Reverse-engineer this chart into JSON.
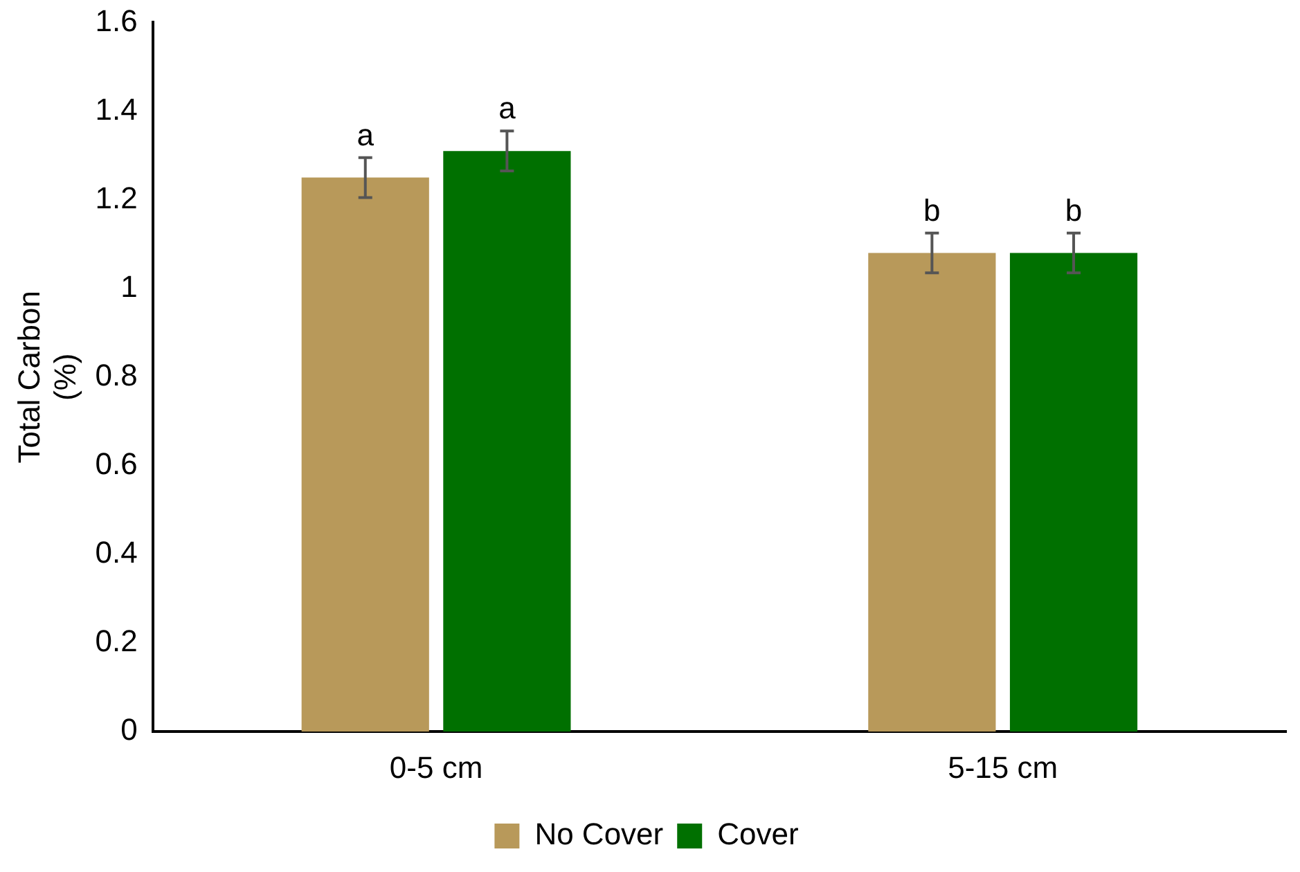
{
  "chart_data": {
    "type": "bar",
    "ylabel": "Total Carbon (%)",
    "categories": [
      "0-5 cm",
      "5-15 cm"
    ],
    "series": [
      {
        "name": "No Cover",
        "color": "#b8995a",
        "values": [
          1.25,
          1.08
        ],
        "errors": [
          0.045,
          0.045
        ]
      },
      {
        "name": "Cover",
        "color": "#007000",
        "values": [
          1.31,
          1.08
        ],
        "errors": [
          0.045,
          0.045
        ]
      }
    ],
    "ylim": [
      0,
      1.6
    ],
    "yticks": [
      0,
      0.2,
      0.4,
      0.6,
      0.8,
      1,
      1.2,
      1.4,
      1.6
    ],
    "grid": false,
    "legend": "bottom",
    "annotations": [
      "a",
      "a",
      "b",
      "b"
    ]
  }
}
